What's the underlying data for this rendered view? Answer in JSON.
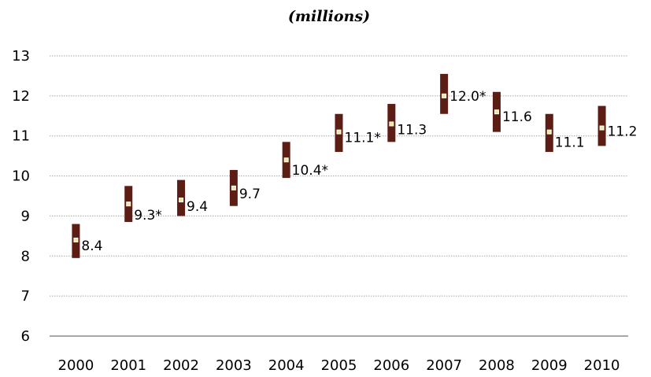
{
  "chart_data": {
    "type": "scatter",
    "title": "(millions)",
    "xlabel": "",
    "ylabel": "",
    "x": [
      "2000",
      "2001",
      "2002",
      "2003",
      "2004",
      "2005",
      "2006",
      "2007",
      "2008",
      "2009",
      "2010"
    ],
    "series": [
      {
        "values": [
          8.4,
          9.3,
          9.4,
          9.7,
          10.4,
          11.1,
          11.3,
          12.0,
          11.6,
          11.1,
          11.2
        ],
        "lower": [
          7.95,
          8.85,
          9.0,
          9.25,
          9.95,
          10.6,
          10.85,
          11.55,
          11.1,
          10.6,
          10.75
        ],
        "upper": [
          8.8,
          9.75,
          9.9,
          10.15,
          10.85,
          11.55,
          11.8,
          12.55,
          12.1,
          11.55,
          11.75
        ]
      }
    ],
    "data_labels": [
      "8.4",
      "9.3*",
      "9.4",
      "9.7",
      "10.4*",
      "11.1*",
      "11.3",
      "12.0*",
      "11.6",
      "11.1",
      "11.2"
    ],
    "y_ticks": [
      "6",
      "7",
      "8",
      "9",
      "10",
      "11",
      "12",
      "13"
    ],
    "ylim": [
      6,
      13
    ],
    "grid": true,
    "legend": "none",
    "colors": {
      "range_bar": "#5c1e14",
      "point_fill": "#e9ec9a",
      "point_stroke": "#ffffff",
      "grid": "#a6a6a6",
      "axis": "#8c8c8c"
    }
  }
}
